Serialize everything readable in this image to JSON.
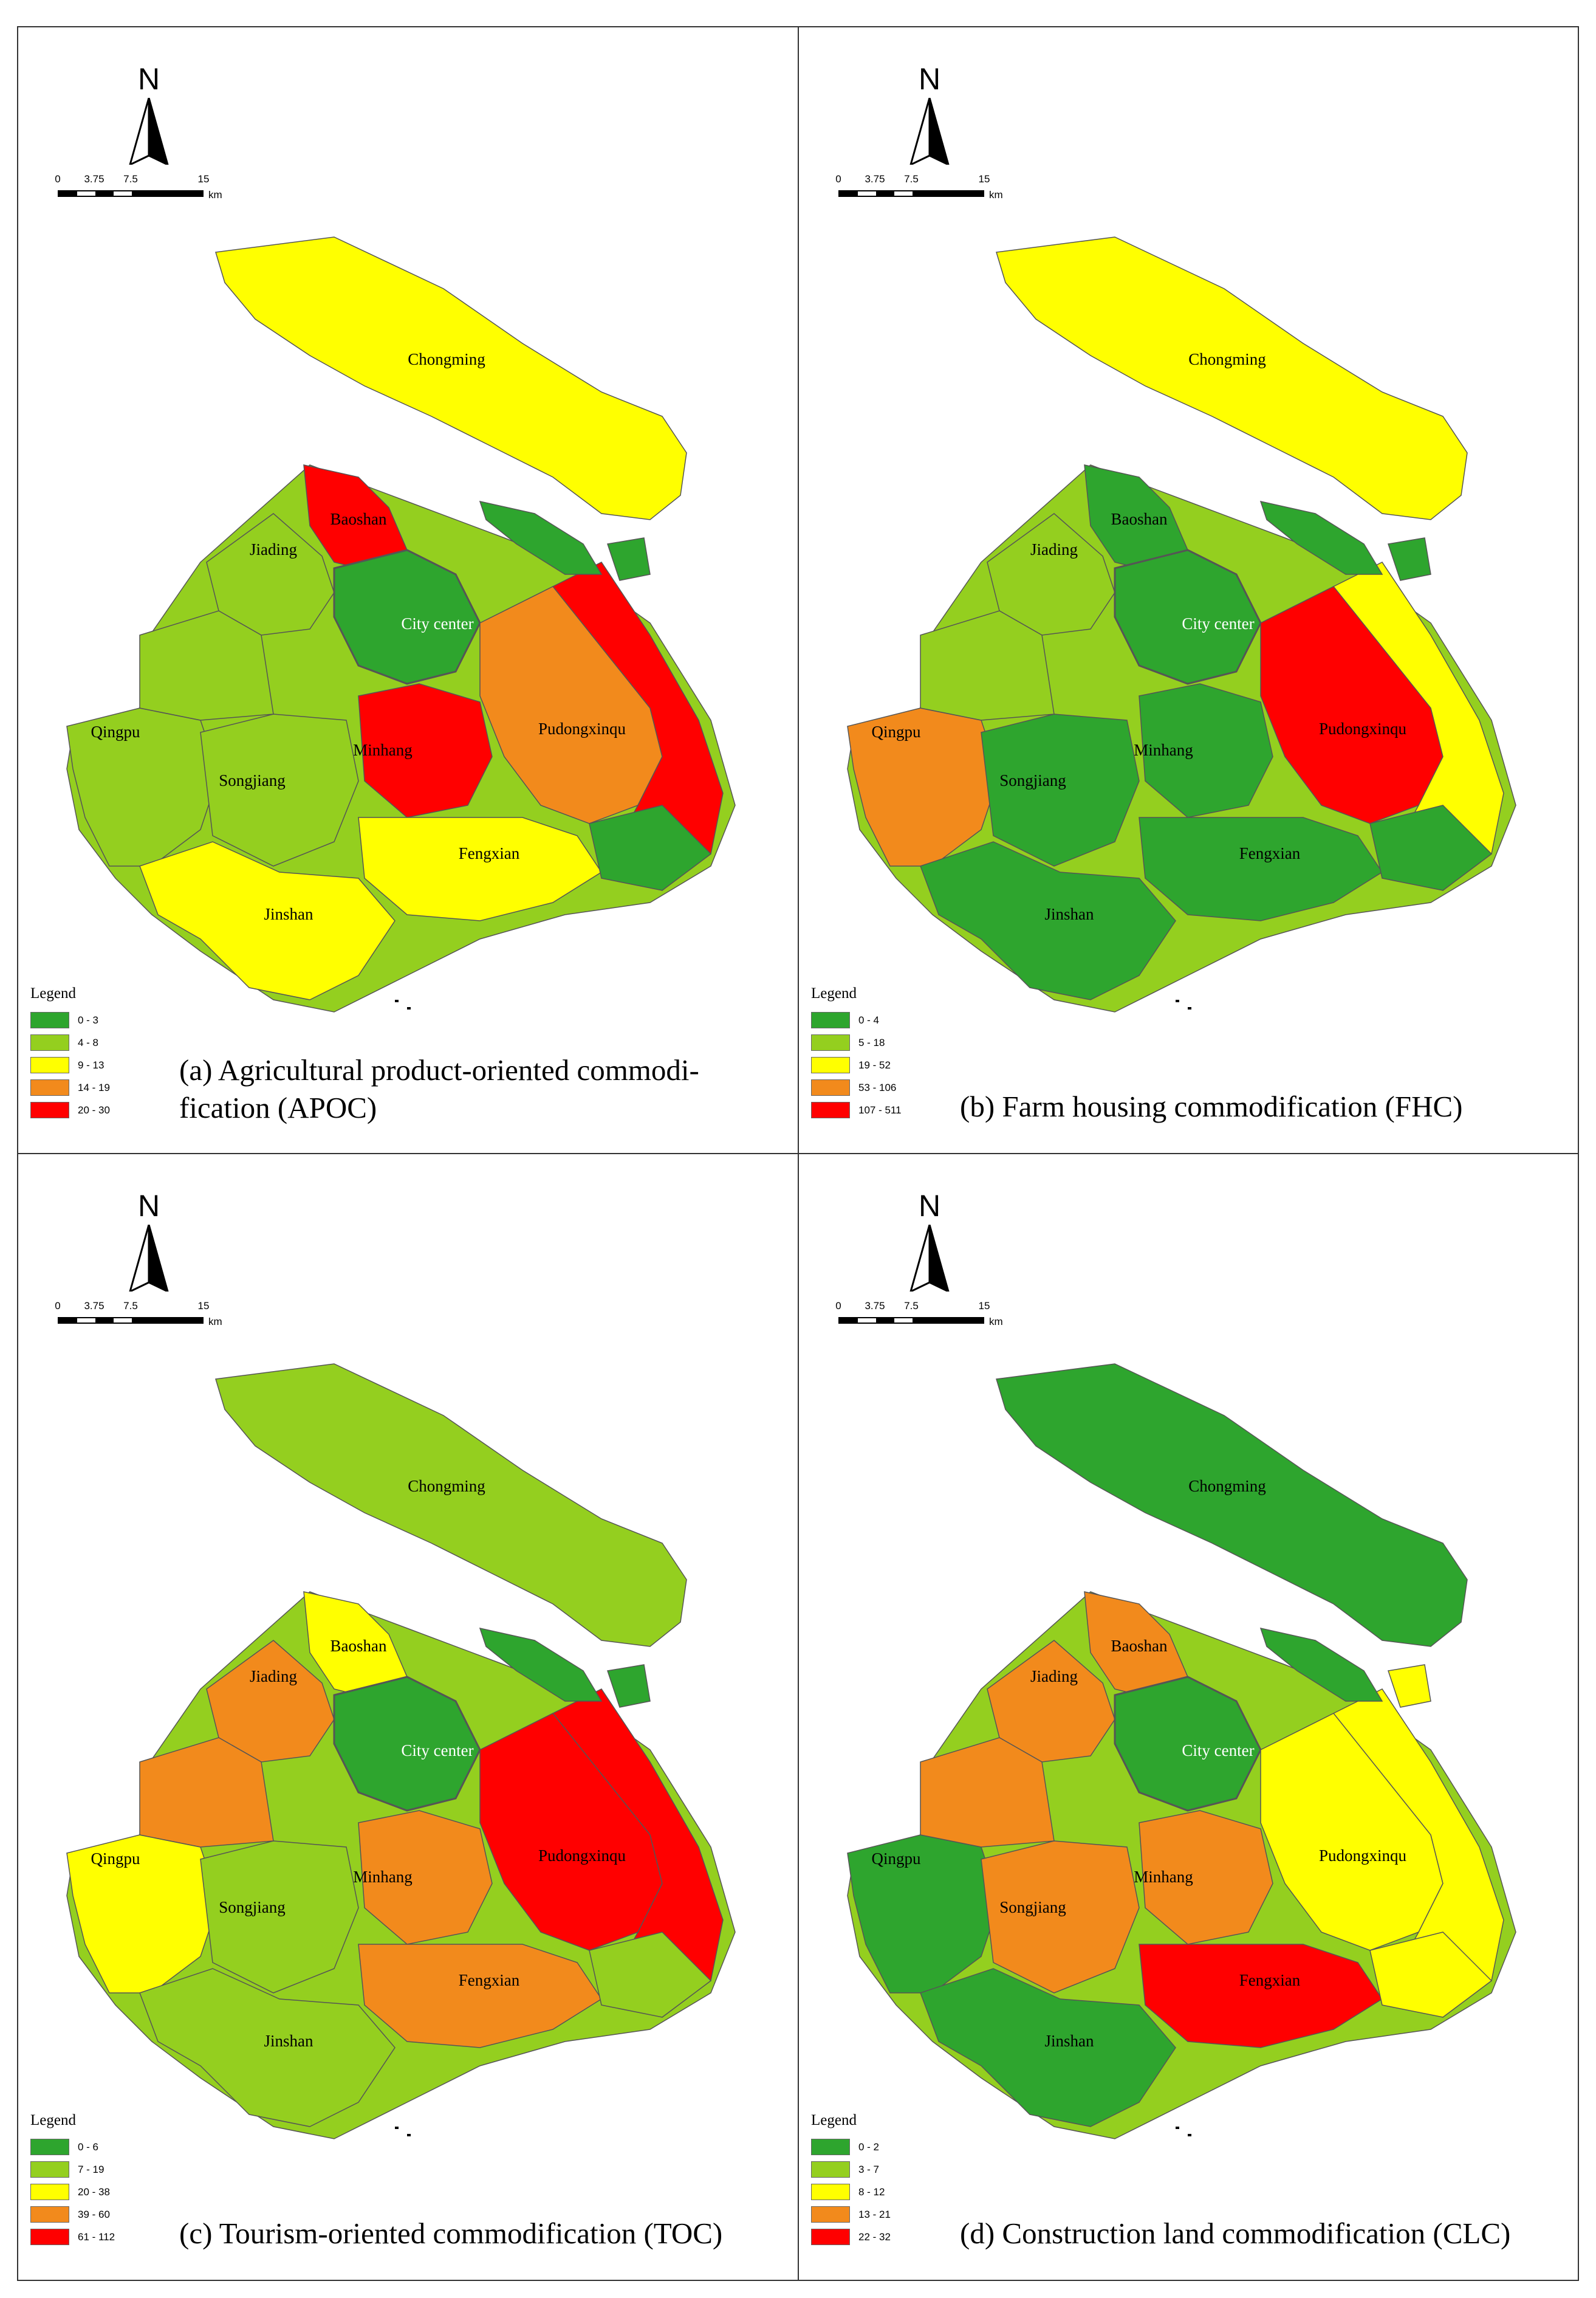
{
  "north_label": "N",
  "scale": {
    "ticks": [
      "0",
      "3.75",
      "7.5",
      "15"
    ],
    "unit": "km"
  },
  "legend_title": "Legend",
  "class_colors": [
    "#2ea52e",
    "#94cf1f",
    "#ffff00",
    "#f28a1c",
    "#ff0000"
  ],
  "districts": {
    "chongming": "Chongming",
    "baoshan": "Baoshan",
    "jiading": "Jiading",
    "city_center": "City center",
    "qingpu": "Qingpu",
    "pudongxinqu": "Pudongxinqu",
    "minhang": "Minhang",
    "songjiang": "Songjiang",
    "fengxian": "Fengxian",
    "jinshan": "Jinshan"
  },
  "panels": [
    {
      "id": "a",
      "caption_line1": "(a) Agricultural product-oriented commodi-",
      "caption_line2": "fication (APOC)",
      "legend": [
        "0 - 3",
        "4 - 8",
        "9 - 13",
        "14 - 19",
        "20 - 30"
      ],
      "district_classes": {
        "chongming": 2,
        "baoshan": 4,
        "jiading": 1,
        "city_center": 0,
        "qingpu": 1,
        "pudongxinqu": 3,
        "minhang": 4,
        "songjiang": 1,
        "fengxian": 2,
        "jinshan": 2,
        "pudong_east": 4,
        "lower_fengxian": 0
      }
    },
    {
      "id": "b",
      "caption_line1": "(b) Farm housing commodification (FHC)",
      "caption_line2": "",
      "legend": [
        "0 - 4",
        "5 - 18",
        "19 - 52",
        "53 - 106",
        "107 - 511"
      ],
      "district_classes": {
        "chongming": 2,
        "baoshan": 0,
        "jiading": 1,
        "city_center": 0,
        "qingpu": 3,
        "pudongxinqu": 4,
        "minhang": 0,
        "songjiang": 0,
        "fengxian": 0,
        "jinshan": 0,
        "pudong_east": 2,
        "lower_fengxian": 0
      }
    },
    {
      "id": "c",
      "caption_line1": "(c) Tourism-oriented commodification (TOC)",
      "caption_line2": "",
      "legend": [
        "0 - 6",
        "7 - 19",
        "20 - 38",
        "39 - 60",
        "61 - 112"
      ],
      "district_classes": {
        "chongming": 1,
        "baoshan": 2,
        "jiading": 3,
        "city_center": 0,
        "qingpu": 2,
        "pudongxinqu": 4,
        "minhang": 3,
        "songjiang": 1,
        "fengxian": 3,
        "jinshan": 1,
        "pudong_east": 4,
        "lower_fengxian": 1
      }
    },
    {
      "id": "d",
      "caption_line1": "(d) Construction land commodification (CLC)",
      "caption_line2": "",
      "legend": [
        "0 - 2",
        "3 - 7",
        "8 - 12",
        "13 - 21",
        "22 - 32"
      ],
      "district_classes": {
        "chongming": 0,
        "baoshan": 3,
        "jiading": 3,
        "city_center": 0,
        "qingpu": 0,
        "pudongxinqu": 2,
        "minhang": 3,
        "songjiang": 3,
        "fengxian": 4,
        "jinshan": 0,
        "pudong_east": 2,
        "lower_fengxian": 2
      }
    }
  ]
}
